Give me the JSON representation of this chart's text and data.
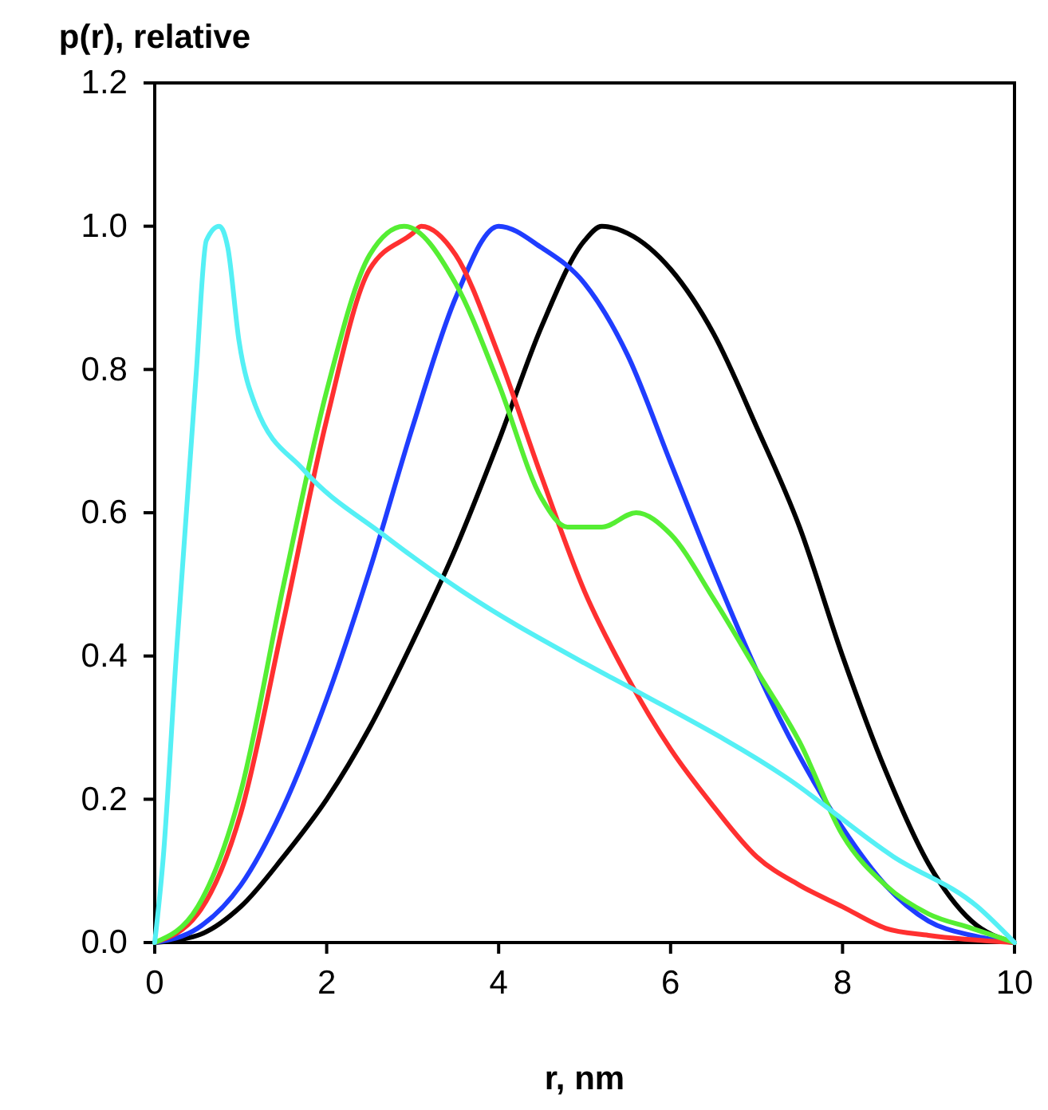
{
  "chart_data": {
    "type": "line",
    "ylabel": "p(r), relative",
    "xlabel": "r, nm",
    "xlim": [
      0,
      10
    ],
    "ylim": [
      0,
      1.2
    ],
    "xticks": [
      0,
      2,
      4,
      6,
      8,
      10
    ],
    "yticks": [
      {
        "value": 0,
        "label": "0.0"
      },
      {
        "value": 0.2,
        "label": "0.2"
      },
      {
        "value": 0.4,
        "label": "0.4"
      },
      {
        "value": 0.6,
        "label": "0.6"
      },
      {
        "value": 0.8,
        "label": "0.8"
      },
      {
        "value": 1,
        "label": "1.0"
      },
      {
        "value": 1.2,
        "label": "1.2"
      }
    ],
    "grid": false,
    "marker": "none",
    "line_style": "solid",
    "series": [
      {
        "color": "#000000",
        "x": [
          0,
          0.5,
          1,
          1.5,
          2,
          2.5,
          3,
          3.5,
          4,
          4.5,
          5,
          5.2,
          5.5,
          6,
          6.5,
          7,
          7.5,
          8,
          8.5,
          9,
          9.5,
          10
        ],
        "values": [
          0,
          0.01,
          0.05,
          0.12,
          0.2,
          0.3,
          0.42,
          0.55,
          0.7,
          0.86,
          0.98,
          1,
          0.99,
          0.94,
          0.85,
          0.72,
          0.58,
          0.4,
          0.24,
          0.11,
          0.03,
          0
        ]
      },
      {
        "color": "#1f3dff",
        "x": [
          0,
          0.5,
          1,
          1.5,
          2,
          2.5,
          3,
          3.5,
          4,
          4.5,
          5,
          5.5,
          6,
          6.5,
          7,
          7.5,
          8,
          8.5,
          9,
          9.5,
          10
        ],
        "values": [
          0,
          0.02,
          0.08,
          0.19,
          0.34,
          0.52,
          0.72,
          0.9,
          1,
          0.97,
          0.92,
          0.82,
          0.67,
          0.52,
          0.38,
          0.26,
          0.16,
          0.08,
          0.03,
          0.01,
          0
        ]
      },
      {
        "color": "#ff3030",
        "x": [
          0,
          0.5,
          1,
          1.5,
          2,
          2.5,
          3,
          3.1,
          3.5,
          4,
          4.5,
          5,
          5.5,
          6,
          6.5,
          7,
          7.5,
          8,
          8.5,
          9,
          10
        ],
        "values": [
          0,
          0.04,
          0.18,
          0.45,
          0.73,
          0.94,
          0.99,
          1,
          0.96,
          0.82,
          0.65,
          0.49,
          0.37,
          0.27,
          0.19,
          0.12,
          0.08,
          0.05,
          0.02,
          0.01,
          0
        ]
      },
      {
        "color": "#55ee33",
        "x": [
          0,
          0.5,
          1,
          1.5,
          2,
          2.5,
          2.9,
          3.5,
          4,
          4.5,
          4.8,
          5.2,
          5.6,
          6,
          6.5,
          7,
          7.5,
          8,
          8.5,
          9,
          9.5,
          10
        ],
        "values": [
          0,
          0.05,
          0.21,
          0.5,
          0.77,
          0.96,
          1,
          0.92,
          0.78,
          0.62,
          0.58,
          0.58,
          0.6,
          0.57,
          0.48,
          0.38,
          0.28,
          0.15,
          0.08,
          0.04,
          0.02,
          0
        ]
      },
      {
        "color": "#55f0f5",
        "x": [
          0,
          0.1,
          0.25,
          0.48,
          0.6,
          0.75,
          0.85,
          0.98,
          1.17,
          1.73,
          2.65,
          3.58,
          5,
          5.62,
          7.35,
          8.59,
          9.57,
          10
        ],
        "values": [
          0,
          0.12,
          0.4,
          0.79,
          0.98,
          1,
          0.97,
          0.84,
          0.75,
          0.66,
          0.57,
          0.49,
          0.39,
          0.35,
          0.23,
          0.12,
          0.05,
          0
        ]
      }
    ]
  }
}
